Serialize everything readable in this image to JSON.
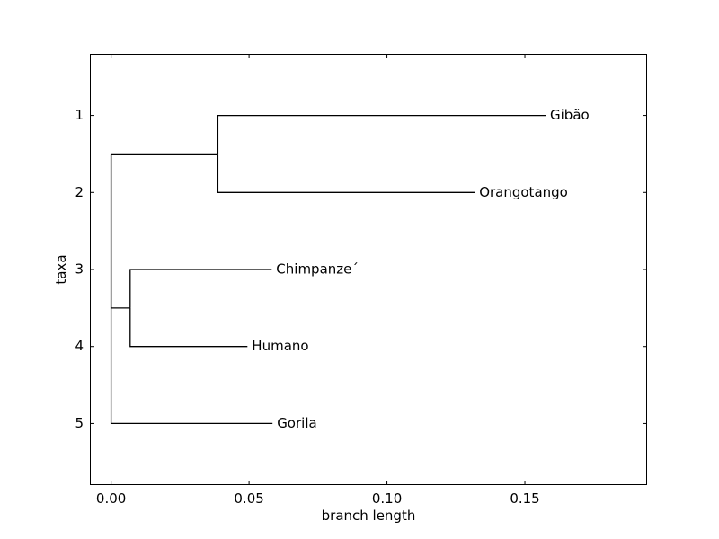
{
  "chart_data": {
    "type": "dendrogram",
    "title": "",
    "xlabel": "branch length",
    "ylabel": "taxa",
    "xlim": [
      -0.0077,
      0.1943
    ],
    "ylim": [
      5.8,
      0.2
    ],
    "x_ticks": [
      {
        "value": 0.0,
        "label": "0.00"
      },
      {
        "value": 0.05,
        "label": "0.05"
      },
      {
        "value": 0.1,
        "label": "0.10"
      },
      {
        "value": 0.15,
        "label": "0.15"
      }
    ],
    "y_ticks": [
      {
        "value": 1,
        "label": "1"
      },
      {
        "value": 2,
        "label": "2"
      },
      {
        "value": 3,
        "label": "3"
      },
      {
        "value": 4,
        "label": "4"
      },
      {
        "value": 5,
        "label": "5"
      }
    ],
    "taxa": [
      {
        "name": "Gibão",
        "y": 1,
        "x": 0.1575
      },
      {
        "name": "Orangotango",
        "y": 2,
        "x": 0.1318
      },
      {
        "name": "Chimpanze´",
        "y": 3,
        "x": 0.0582
      },
      {
        "name": "Humano",
        "y": 4,
        "x": 0.0494
      },
      {
        "name": "Gorila",
        "y": 5,
        "x": 0.0585
      }
    ],
    "internal_nodes": [
      {
        "name": "gibbon-orangutan",
        "x": 0.0387,
        "y": 1.5
      },
      {
        "name": "chimp-human",
        "x": 0.0069,
        "y": 3.5
      },
      {
        "name": "root",
        "x": 0.0,
        "y": 1.5
      }
    ],
    "branches": [
      {
        "from": "gibbon-orangutan",
        "to": "Gibão"
      },
      {
        "from": "gibbon-orangutan",
        "to": "Orangotango"
      },
      {
        "from": "chimp-human",
        "to": "Chimpanze´"
      },
      {
        "from": "chimp-human",
        "to": "Humano"
      },
      {
        "from": "root",
        "to": "gibbon-orangutan"
      },
      {
        "from": "root",
        "to": "chimp-human"
      },
      {
        "from": "root",
        "to": "Gorila"
      }
    ],
    "grid": false,
    "legend": "none"
  }
}
